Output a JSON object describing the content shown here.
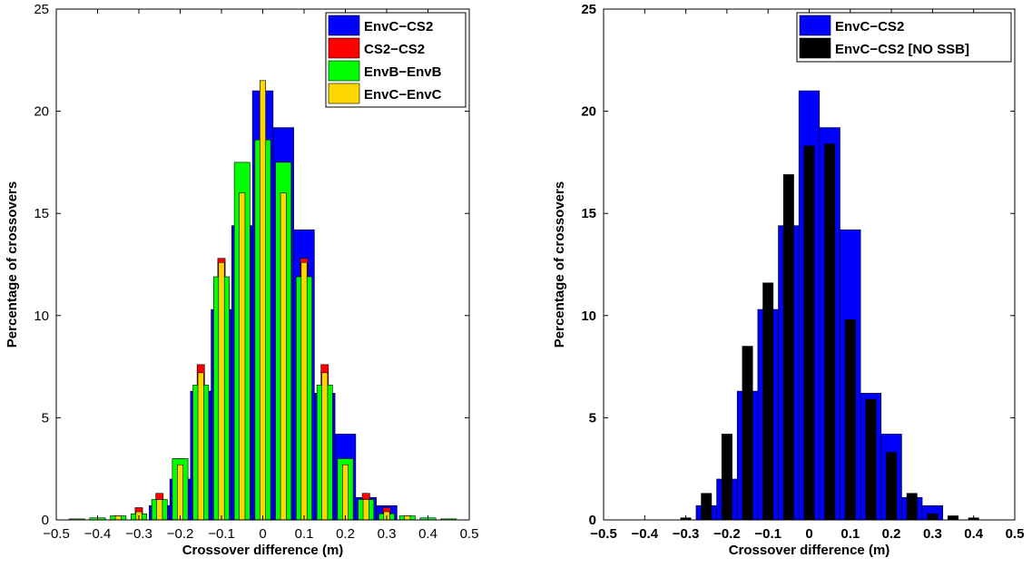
{
  "chart_data": [
    {
      "type": "bar",
      "xlabel": "Crossover difference (m)",
      "ylabel": "Percentage of crossovers",
      "xlim": [
        -0.5,
        0.5
      ],
      "ylim": [
        0,
        25
      ],
      "x_ticks": [
        "−0.5",
        "−0.4",
        "−0.3",
        "−0.2",
        "−0.1",
        "0",
        "0.1",
        "0.2",
        "0.3",
        "0.4",
        "0.5"
      ],
      "y_ticks": [
        "0",
        "5",
        "10",
        "15",
        "20",
        "25"
      ],
      "tick_label_weight": "normal",
      "legend_position": "top-right",
      "series": [
        {
          "name": "EnvC−CS2",
          "color": "#0000ff",
          "width": 0.05,
          "x": [
            -0.25,
            -0.2,
            -0.15,
            -0.1,
            -0.05,
            0,
            0.05,
            0.1,
            0.15,
            0.2,
            0.25,
            0.3
          ],
          "values": [
            0.7,
            2.0,
            6.3,
            10.3,
            14.4,
            21.0,
            19.2,
            14.2,
            6.2,
            4.2,
            1.1,
            0.7
          ]
        },
        {
          "name": "CS2−CS2",
          "color": "#ff0000",
          "width": 0.018,
          "x": [
            -0.35,
            -0.3,
            -0.25,
            -0.2,
            -0.15,
            -0.1,
            -0.05,
            0,
            0.05,
            0.1,
            0.15,
            0.2,
            0.25,
            0.3,
            0.35
          ],
          "values": [
            0.2,
            0.6,
            1.3,
            3.0,
            7.6,
            12.8,
            16.2,
            17.0,
            16.2,
            12.8,
            7.6,
            3.0,
            1.3,
            0.6,
            0.2
          ]
        },
        {
          "name": "EnvB−EnvB",
          "color": "#00ff00",
          "width": 0.038,
          "x": [
            -0.45,
            -0.4,
            -0.35,
            -0.3,
            -0.25,
            -0.2,
            -0.15,
            -0.1,
            -0.05,
            0,
            0.05,
            0.1,
            0.15,
            0.2,
            0.25,
            0.3,
            0.35,
            0.4,
            0.45
          ],
          "values": [
            0.05,
            0.1,
            0.2,
            0.3,
            1.0,
            3.0,
            6.6,
            11.9,
            17.5,
            18.6,
            17.5,
            11.9,
            6.6,
            3.0,
            1.0,
            0.3,
            0.2,
            0.1,
            0.05
          ]
        },
        {
          "name": "EnvC−EnvC",
          "color": "#ffd700",
          "width": 0.014,
          "x": [
            -0.35,
            -0.3,
            -0.25,
            -0.2,
            -0.15,
            -0.1,
            -0.05,
            0,
            0.05,
            0.1,
            0.15,
            0.2,
            0.25,
            0.3,
            0.35
          ],
          "values": [
            0.2,
            0.4,
            1.0,
            2.7,
            7.2,
            12.6,
            16.0,
            21.5,
            16.0,
            12.6,
            7.2,
            2.7,
            1.0,
            0.4,
            0.2
          ]
        }
      ]
    },
    {
      "type": "bar",
      "xlabel": "Crossover difference (m)",
      "ylabel": "Percentage of crossovers",
      "xlim": [
        -0.5,
        0.5
      ],
      "ylim": [
        0,
        25
      ],
      "x_ticks": [
        "−0.5",
        "−0.4",
        "−0.3",
        "−0.2",
        "−0.1",
        "0",
        "0.1",
        "0.2",
        "0.3",
        "0.4",
        "0.5"
      ],
      "y_ticks": [
        "0",
        "5",
        "10",
        "15",
        "20",
        "25"
      ],
      "tick_label_weight": "bold",
      "legend_position": "top-right",
      "series": [
        {
          "name": "EnvC−CS2",
          "color": "#0000ff",
          "width": 0.05,
          "x": [
            -0.25,
            -0.2,
            -0.15,
            -0.1,
            -0.05,
            0,
            0.05,
            0.1,
            0.15,
            0.2,
            0.25,
            0.3
          ],
          "values": [
            0.7,
            2.0,
            6.3,
            10.3,
            14.4,
            21.0,
            19.2,
            14.2,
            6.2,
            4.2,
            1.1,
            0.7
          ]
        },
        {
          "name": "EnvC−CS2 [NO SSB]",
          "color": "#000000",
          "width": 0.025,
          "x": [
            -0.3,
            -0.25,
            -0.2,
            -0.15,
            -0.1,
            -0.05,
            0,
            0.05,
            0.1,
            0.15,
            0.2,
            0.25,
            0.3,
            0.35,
            0.4
          ],
          "values": [
            0.1,
            1.3,
            4.2,
            8.5,
            11.6,
            16.9,
            18.3,
            18.4,
            9.8,
            5.9,
            3.3,
            1.3,
            0.3,
            0.2,
            0.1
          ]
        }
      ]
    }
  ]
}
